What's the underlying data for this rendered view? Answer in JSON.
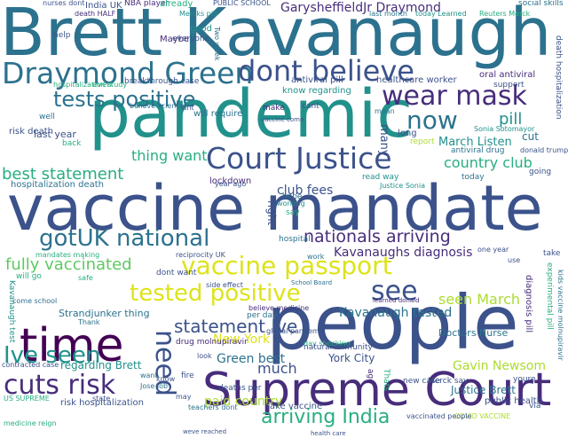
{
  "words": [
    "Brett Kavanaugh",
    "pandemic",
    "vaccine mandate",
    "people",
    "Supreme Court",
    "time",
    "Draymond Green",
    "dont believe",
    "wear mask",
    "Court Justice",
    "tests positive",
    "now",
    "gotUK national",
    "nationals arriving",
    "vaccine passport",
    "tested positive",
    "see",
    "fully vaccinated",
    "cuts risk",
    "Ive seen",
    "arriving India",
    "need",
    "statement Ive",
    "GarysheffieldJr Draymond",
    "best statement",
    "country club",
    "thing want",
    "pill",
    "cut",
    "club fees",
    "Kavanaughs diagnosis",
    "seen March",
    "Kavanaugh tested",
    "March Listen",
    "New York",
    "Green best",
    "Gavin Newsom",
    "York City",
    "much",
    "regarding Brett",
    "Justice Brett",
    "paid country",
    "Strandjunker thing",
    "hospitalization death",
    "know regarding",
    "lockdown",
    "right",
    "will require",
    "Doctors Nurse",
    "public health",
    "risk hospitalization",
    "take vaccine",
    "deaths per",
    "many",
    "India UK",
    "NBA player",
    "PUBLIC SCHOOL",
    "nurses dont",
    "death HALF",
    "social skills",
    "Mercks pill",
    "today Learned",
    "last month",
    "Reuters Merck",
    "already",
    "Maybe",
    "help",
    "good",
    "everyone",
    "Two week",
    "oral antiviral",
    "support",
    "death hospitalization",
    "healthcare worker",
    "antiviral pill",
    "breakthrough case",
    "even",
    "believe science",
    "isnt",
    "make",
    "cant",
    "hospitalization study",
    "last year",
    "back",
    "risk death",
    "well",
    "mean",
    "vaccine come",
    "long",
    "report",
    "antiviral drug",
    "Sonia Sotomayor",
    "donald trump",
    "today",
    "going",
    "read way",
    "Justice Sonia",
    "year ago",
    "hope",
    "working",
    "say",
    "hospital",
    "work",
    "one year",
    "use",
    "take",
    "dont want",
    "safe",
    "will go",
    "mandates making",
    "reciprocity UK",
    "side effect",
    "School Board",
    "come school",
    "Thank",
    "believe medicine",
    "per day",
    "day shocking",
    "natural immunity",
    "drug molnupiravir",
    "global pandemic",
    "Kavanaugh test",
    "diagnosis pill",
    "experimental pill",
    "kids vaccine molnupiravir",
    "Merck say",
    "new case",
    "US SUPREME",
    "state",
    "want",
    "fire",
    "may",
    "ago",
    "Thats",
    "youre",
    "via",
    "know",
    "teachers dont",
    "medicine reign",
    "weve reached",
    "learned donald",
    "COVID VACCINE",
    "vaccinated people",
    "contracted case",
    "look",
    "Jose job",
    "health care",
    "City Gavinnewsom"
  ]
}
